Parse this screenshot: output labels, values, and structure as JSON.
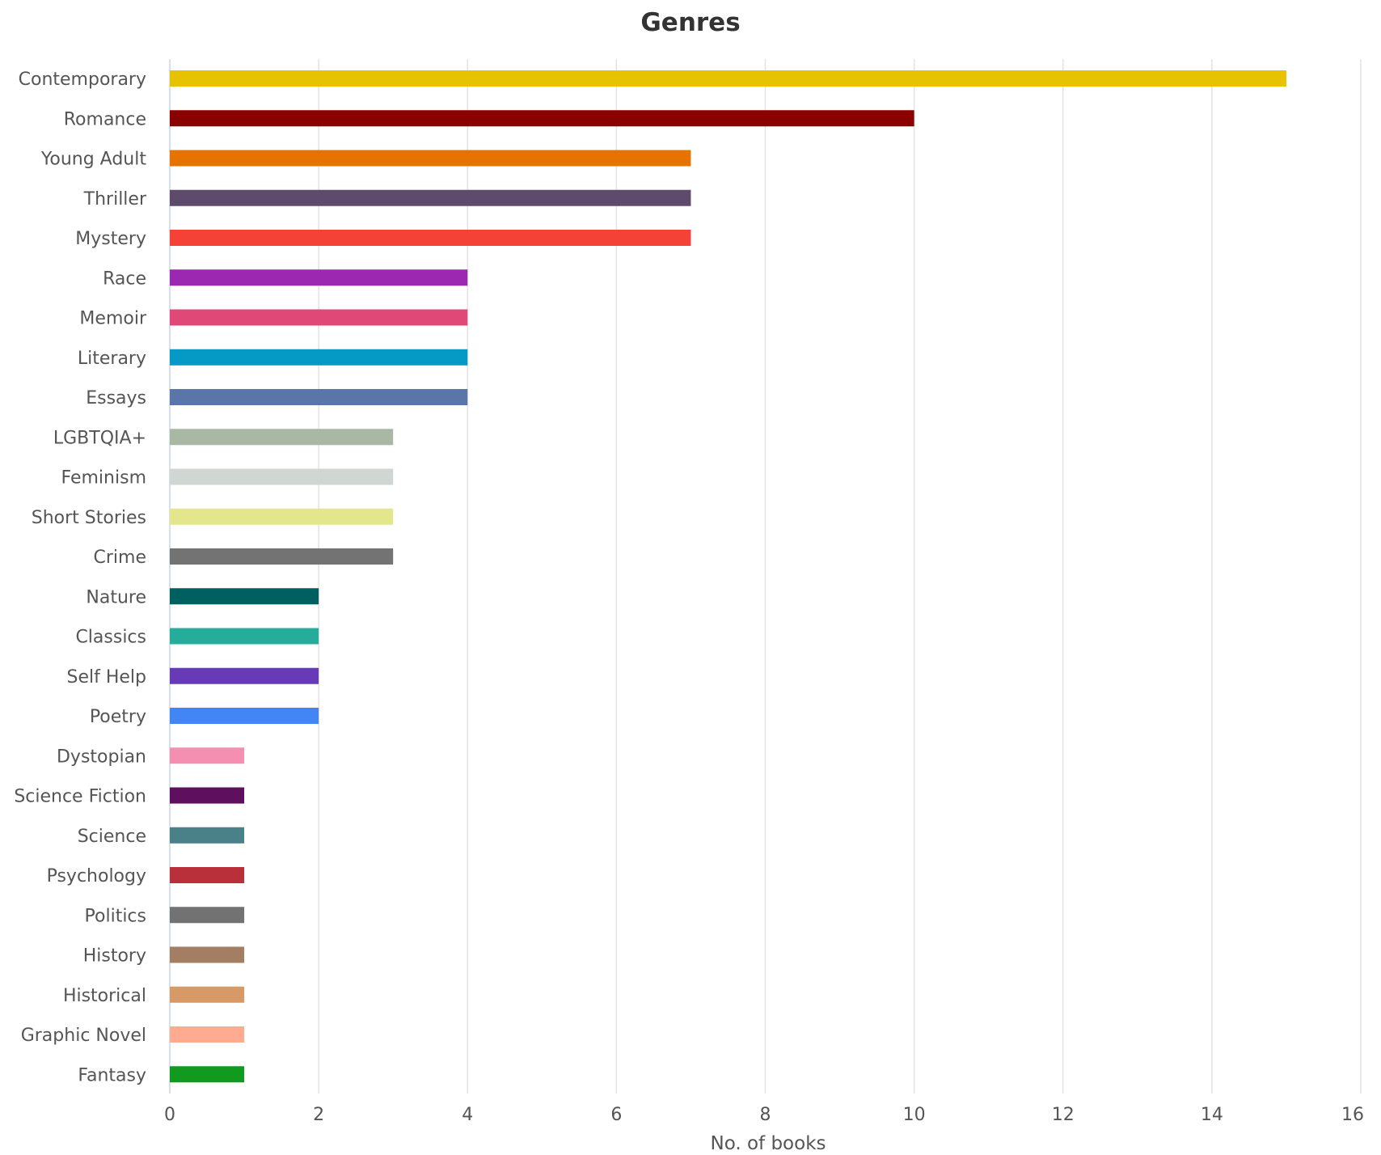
{
  "chart_data": {
    "type": "bar",
    "orientation": "horizontal",
    "title": "Genres",
    "xlabel": "No. of books",
    "ylabel": "",
    "xlim": [
      0,
      16
    ],
    "x_ticks": [
      0,
      2,
      4,
      6,
      8,
      10,
      12,
      14,
      16
    ],
    "x_tick_labels": [
      "0",
      "2",
      "4",
      "6",
      "8",
      "10",
      "12",
      "14",
      "16"
    ],
    "grid": true,
    "legend": "none",
    "categories": [
      "Contemporary",
      "Romance",
      "Young Adult",
      "Thriller",
      "Mystery",
      "Race",
      "Memoir",
      "Literary",
      "Essays",
      "LGBTQIA+",
      "Feminism",
      "Short Stories",
      "Crime",
      "Nature",
      "Classics",
      "Self Help",
      "Poetry",
      "Dystopian",
      "Science Fiction",
      "Science",
      "Psychology",
      "Politics",
      "History",
      "Historical",
      "Graphic Novel",
      "Fantasy"
    ],
    "values": [
      15,
      10,
      7,
      7,
      7,
      4,
      4,
      4,
      4,
      3,
      3,
      3,
      3,
      2,
      2,
      2,
      2,
      1,
      1,
      1,
      1,
      1,
      1,
      1,
      1,
      1
    ],
    "colors": [
      "#e6c200",
      "#8b0000",
      "#e67300",
      "#5e4a6b",
      "#f44336",
      "#9c27b0",
      "#e04878",
      "#0599c6",
      "#5a75a8",
      "#a8b8a4",
      "#d0d7d3",
      "#e3e68a",
      "#737373",
      "#005f5f",
      "#26ac9a",
      "#673ab7",
      "#4285f4",
      "#f48fb1",
      "#5e0f5e",
      "#4a8088",
      "#b9303a",
      "#727272",
      "#a47e62",
      "#d79a67",
      "#ffab91",
      "#12991f"
    ]
  }
}
